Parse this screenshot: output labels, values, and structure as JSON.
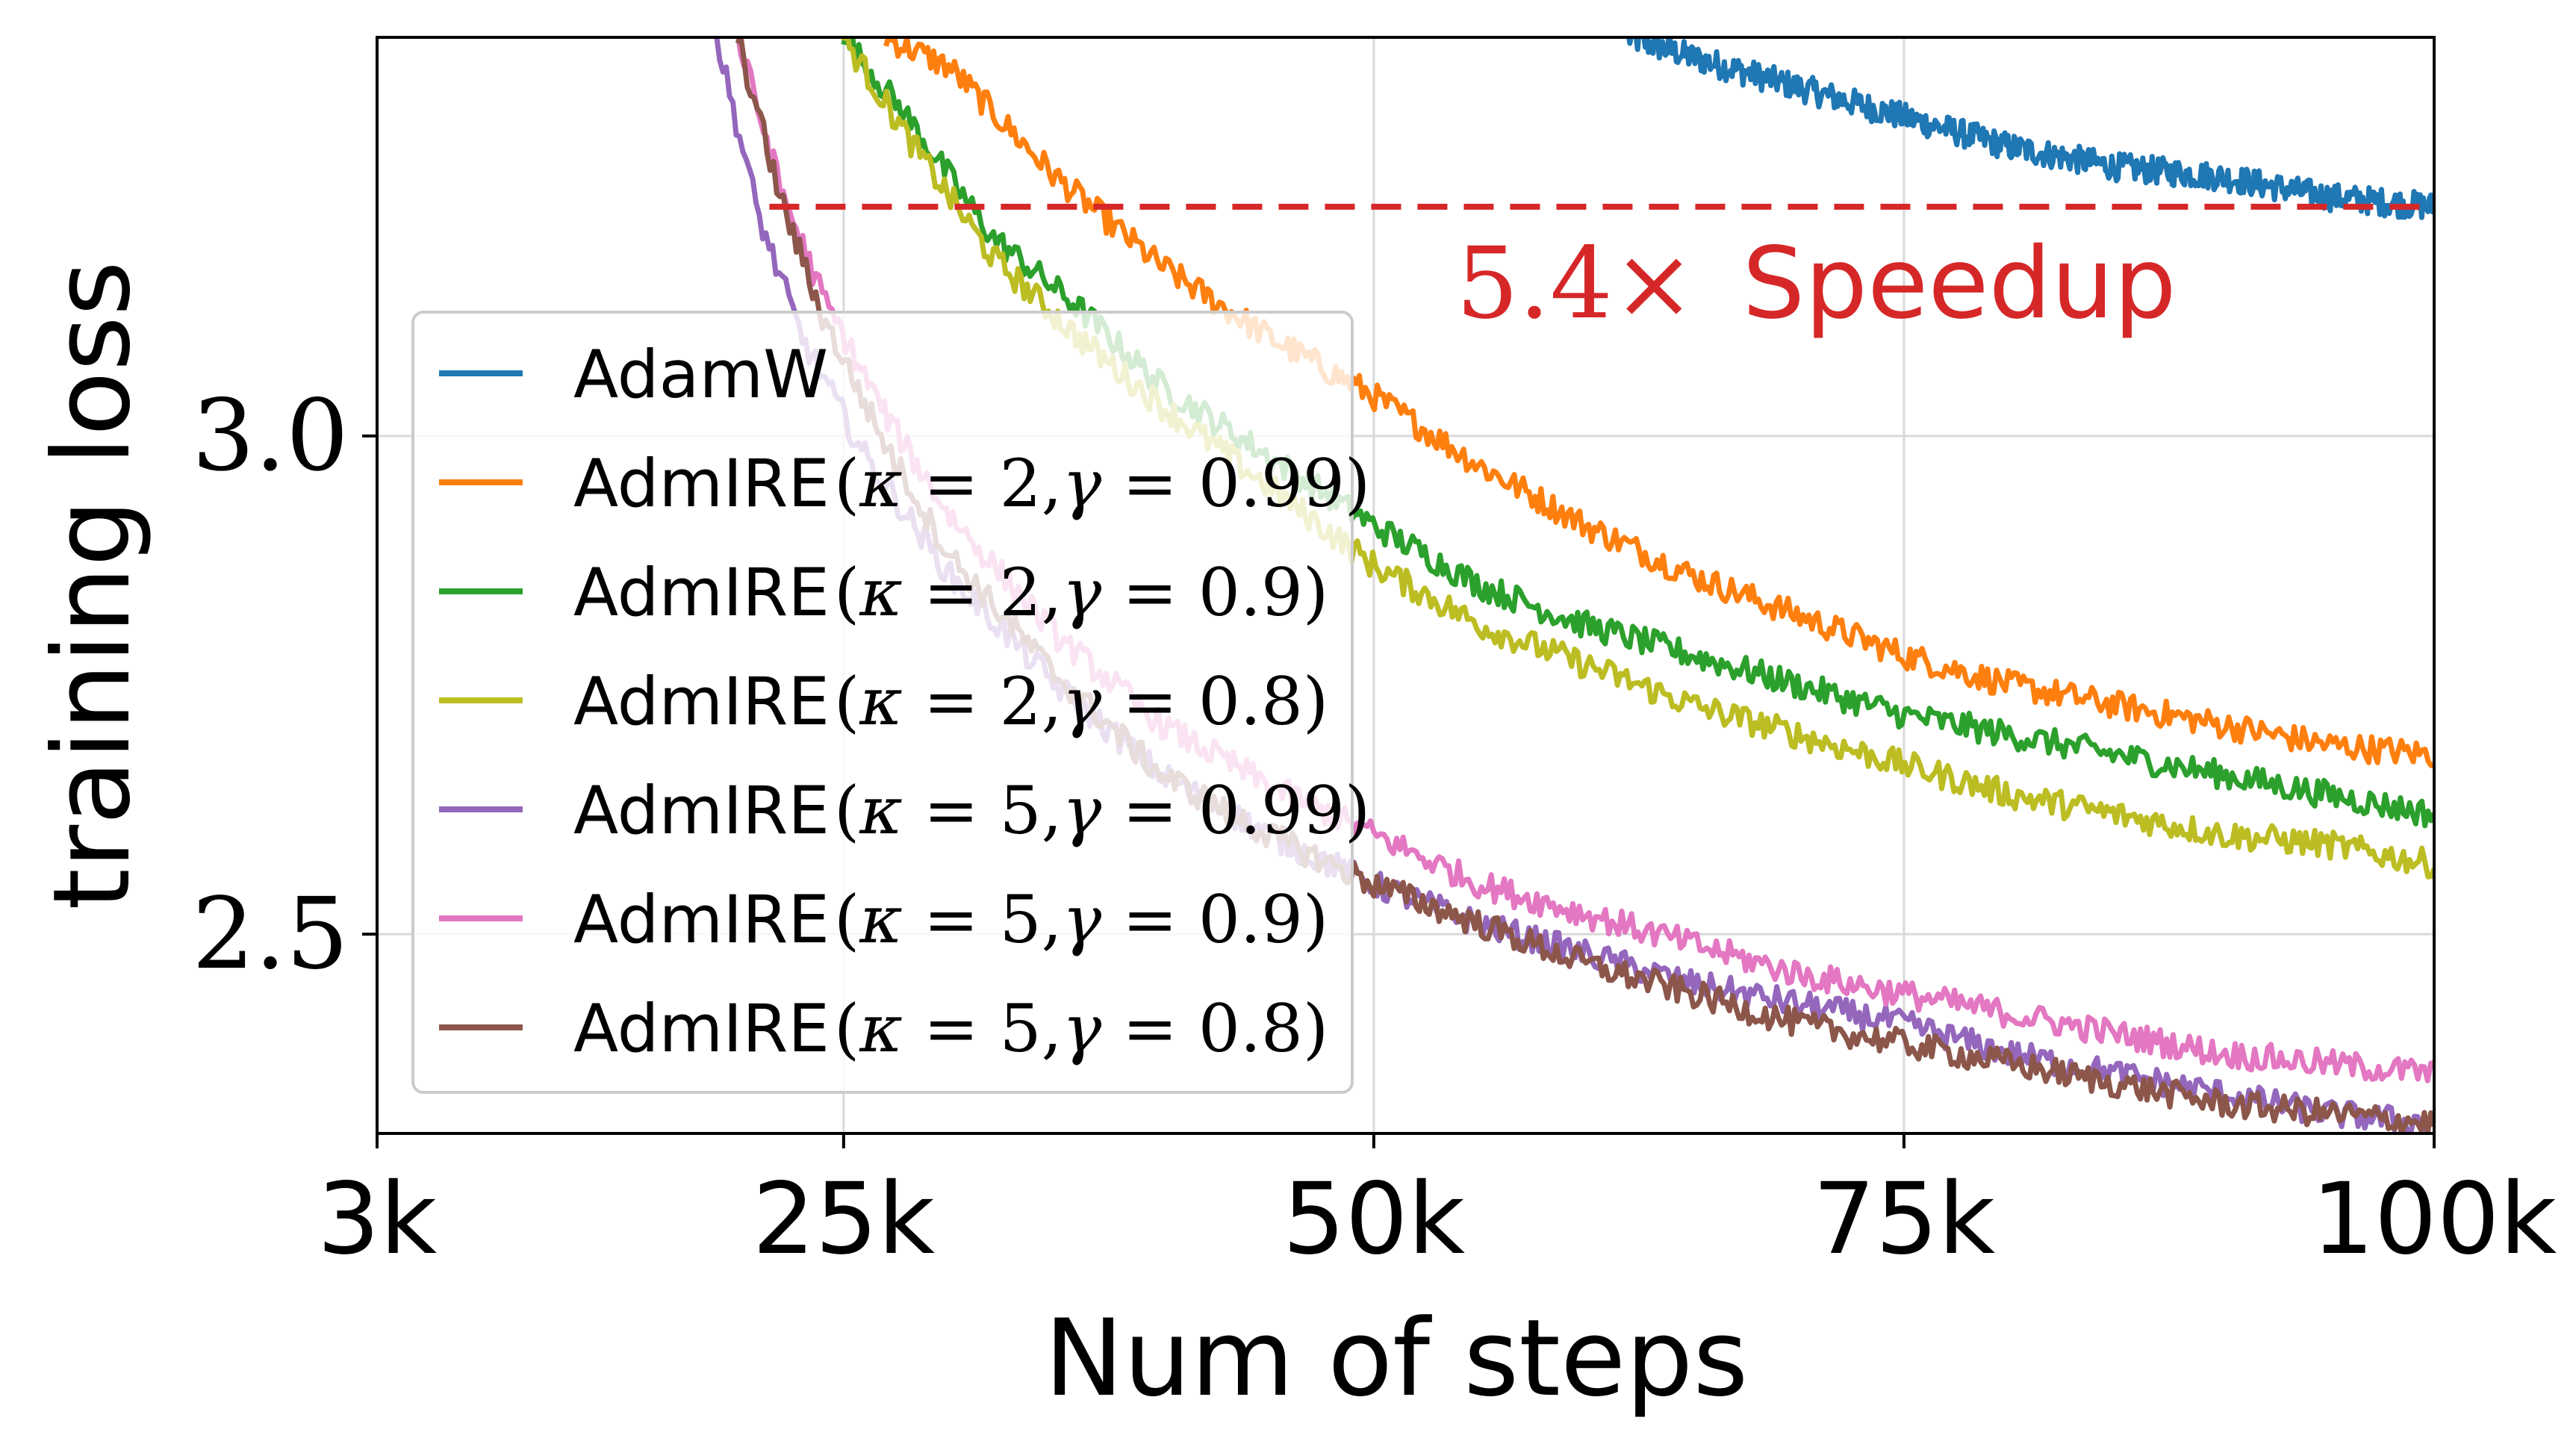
{
  "chart_data": {
    "type": "line",
    "xlabel": "Num of steps",
    "ylabel": "training loss",
    "xlim": [
      3000,
      100000
    ],
    "ylim": [
      2.3,
      3.4
    ],
    "xticks": [
      {
        "value": 3000,
        "label": "3k"
      },
      {
        "value": 25000,
        "label": "25k"
      },
      {
        "value": 50000,
        "label": "50k"
      },
      {
        "value": 75000,
        "label": "75k"
      },
      {
        "value": 100000,
        "label": "100k"
      }
    ],
    "yticks": [
      {
        "value": 2.5,
        "label": "2.5"
      },
      {
        "value": 3.0,
        "label": "3.0"
      }
    ],
    "grid": true,
    "legend_position": "lower-left",
    "reference_line": {
      "y": 3.23,
      "x_start": 21500,
      "x_end": 100000,
      "color": "#d62728",
      "style": "dashed"
    },
    "annotation": {
      "prefix": "5.4×",
      "word": "Speedup",
      "color": "#d62728"
    },
    "series": [
      {
        "name": "AdamW",
        "legend_base": "AdmIRE",
        "color": "#1f77b4",
        "x": [
          62000,
          65000,
          70000,
          75000,
          80000,
          85000,
          90000,
          95000,
          100000
        ],
        "y": [
          3.4,
          3.38,
          3.35,
          3.32,
          3.29,
          3.27,
          3.26,
          3.24,
          3.23
        ]
      },
      {
        "name": "AdmIRE",
        "params": {
          "kappa": "2",
          "gamma": "0.99"
        },
        "color": "#ff7f0e",
        "x": [
          27000,
          30000,
          35000,
          40000,
          45000,
          50000,
          55000,
          60000,
          65000,
          70000,
          75000,
          80000,
          85000,
          90000,
          95000,
          100000
        ],
        "y": [
          3.4,
          3.37,
          3.26,
          3.17,
          3.1,
          3.04,
          2.97,
          2.91,
          2.86,
          2.82,
          2.78,
          2.75,
          2.73,
          2.71,
          2.69,
          2.68
        ]
      },
      {
        "name": "AdmIRE",
        "params": {
          "kappa": "2",
          "gamma": "0.9"
        },
        "color": "#2ca02c",
        "x": [
          25000,
          28000,
          32000,
          36000,
          40000,
          45000,
          50000,
          55000,
          60000,
          65000,
          70000,
          75000,
          80000,
          85000,
          90000,
          95000,
          100000
        ],
        "y": [
          3.4,
          3.32,
          3.2,
          3.13,
          3.05,
          2.98,
          2.91,
          2.85,
          2.81,
          2.78,
          2.75,
          2.72,
          2.7,
          2.68,
          2.66,
          2.64,
          2.62
        ]
      },
      {
        "name": "AdmIRE",
        "params": {
          "kappa": "2",
          "gamma": "0.8"
        },
        "color": "#bcbd22",
        "x": [
          25000,
          28000,
          32000,
          36000,
          40000,
          45000,
          50000,
          55000,
          60000,
          65000,
          70000,
          75000,
          80000,
          85000,
          90000,
          95000,
          100000
        ],
        "y": [
          3.4,
          3.3,
          3.18,
          3.1,
          3.03,
          2.95,
          2.87,
          2.81,
          2.77,
          2.73,
          2.7,
          2.67,
          2.64,
          2.62,
          2.6,
          2.59,
          2.57
        ]
      },
      {
        "name": "AdmIRE",
        "params": {
          "kappa": "5",
          "gamma": "0.99"
        },
        "color": "#9467bd",
        "x": [
          19000,
          21000,
          23000,
          26000,
          30000,
          35000,
          40000,
          45000,
          50000,
          55000,
          60000,
          65000,
          70000,
          75000,
          80000,
          85000,
          90000,
          95000,
          100000
        ],
        "y": [
          3.4,
          3.22,
          3.1,
          2.98,
          2.86,
          2.75,
          2.66,
          2.6,
          2.55,
          2.51,
          2.48,
          2.45,
          2.43,
          2.41,
          2.38,
          2.36,
          2.34,
          2.32,
          2.31
        ]
      },
      {
        "name": "AdmIRE",
        "params": {
          "kappa": "5",
          "gamma": "0.9"
        },
        "color": "#e377c2",
        "x": [
          20000,
          22000,
          24000,
          27000,
          30000,
          35000,
          40000,
          45000,
          50000,
          55000,
          60000,
          65000,
          70000,
          75000,
          80000,
          85000,
          90000,
          95000,
          100000
        ],
        "y": [
          3.4,
          3.25,
          3.14,
          3.02,
          2.92,
          2.8,
          2.71,
          2.65,
          2.6,
          2.55,
          2.52,
          2.49,
          2.46,
          2.44,
          2.42,
          2.4,
          2.38,
          2.37,
          2.36
        ]
      },
      {
        "name": "AdmIRE",
        "params": {
          "kappa": "5",
          "gamma": "0.8"
        },
        "color": "#8c564b",
        "x": [
          20000,
          22000,
          24000,
          27000,
          30000,
          35000,
          40000,
          45000,
          50000,
          55000,
          60000,
          65000,
          70000,
          75000,
          80000,
          85000,
          90000,
          95000,
          100000
        ],
        "y": [
          3.4,
          3.24,
          3.12,
          2.99,
          2.88,
          2.76,
          2.66,
          2.6,
          2.55,
          2.51,
          2.47,
          2.44,
          2.41,
          2.39,
          2.37,
          2.35,
          2.33,
          2.32,
          2.31
        ]
      }
    ]
  }
}
